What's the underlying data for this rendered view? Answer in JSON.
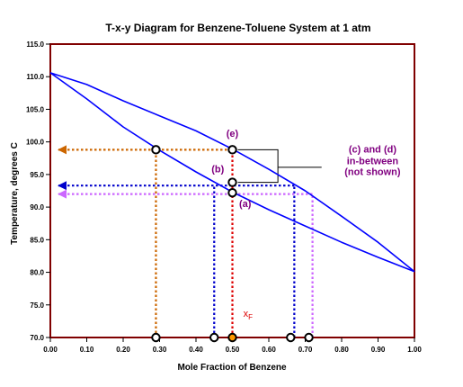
{
  "chart_data": {
    "type": "line",
    "title": "T-x-y Diagram for Benzene-Toluene System at 1 atm",
    "xlabel": "Mole Fraction of Benzene",
    "ylabel": "Temperature, degrees C",
    "xlim": [
      0,
      1
    ],
    "ylim": [
      70,
      115
    ],
    "x_ticks": [
      "0.00",
      "0.10",
      "0.20",
      "0.30",
      "0.40",
      "0.50",
      "0.60",
      "0.70",
      "0.80",
      "0.90",
      "1.00"
    ],
    "y_ticks": [
      "70.0",
      "75.0",
      "80.0",
      "85.0",
      "90.0",
      "95.0",
      "100.0",
      "105.0",
      "110.0",
      "115.0"
    ],
    "grid": false,
    "legend": "none",
    "series": [
      {
        "x": [
          0.0,
          0.1,
          0.2,
          0.3,
          0.4,
          0.5,
          0.6,
          0.7,
          0.8,
          0.9,
          1.0
        ],
        "y": [
          110.6,
          106.6,
          102.3,
          98.7,
          95.4,
          92.3,
          89.6,
          87.1,
          84.6,
          82.3,
          80.1
        ]
      },
      {
        "x": [
          0.0,
          0.1,
          0.2,
          0.3,
          0.4,
          0.5,
          0.6,
          0.7,
          0.8,
          0.9,
          1.0
        ],
        "y": [
          110.6,
          108.8,
          106.3,
          104.0,
          101.7,
          98.9,
          95.8,
          92.5,
          88.6,
          84.6,
          80.1
        ]
      }
    ],
    "guide_lines": [
      {
        "color": "#cc6600",
        "x1": 0.0,
        "y1": 98.8,
        "x2": 0.5,
        "y2": 98.8,
        "arrow": "left"
      },
      {
        "color": "#cc6600",
        "x1": 0.29,
        "y1": 70,
        "x2": 0.29,
        "y2": 98.8,
        "arrow": "none"
      },
      {
        "color": "#0000cc",
        "x1": 0.0,
        "y1": 93.3,
        "x2": 0.67,
        "y2": 93.3,
        "arrow": "left"
      },
      {
        "color": "#0000cc",
        "x1": 0.45,
        "y1": 70,
        "x2": 0.45,
        "y2": 93.3,
        "arrow": "none"
      },
      {
        "color": "#0000cc",
        "x1": 0.67,
        "y1": 70,
        "x2": 0.67,
        "y2": 93.3,
        "arrow": "none"
      },
      {
        "color": "#cc66ff",
        "x1": 0.0,
        "y1": 92.0,
        "x2": 0.72,
        "y2": 92.0,
        "arrow": "left"
      },
      {
        "color": "#cc66ff",
        "x1": 0.72,
        "y1": 70,
        "x2": 0.72,
        "y2": 92.0,
        "arrow": "none"
      },
      {
        "color": "#dd0000",
        "x1": 0.5,
        "y1": 70,
        "x2": 0.5,
        "y2": 98.8,
        "arrow": "none"
      }
    ],
    "points": [
      {
        "x": 0.29,
        "y": 98.8,
        "fill": "#ffffff"
      },
      {
        "x": 0.5,
        "y": 98.8,
        "fill": "#ffffff"
      },
      {
        "x": 0.5,
        "y": 93.8,
        "fill": "#ffffff"
      },
      {
        "x": 0.5,
        "y": 92.2,
        "fill": "#ffffff"
      },
      {
        "x": 0.29,
        "y": 70.0,
        "fill": "#ffffff"
      },
      {
        "x": 0.45,
        "y": 70.0,
        "fill": "#ffffff"
      },
      {
        "x": 0.5,
        "y": 70.0,
        "fill": "#ff9900"
      },
      {
        "x": 0.66,
        "y": 70.0,
        "fill": "#ffffff"
      },
      {
        "x": 0.71,
        "y": 70.0,
        "fill": "#ffffff"
      }
    ],
    "annotations": [
      {
        "text": "(e)",
        "x": 0.5,
        "y": 100.8,
        "color": "#800080"
      },
      {
        "text": "(b)",
        "x": 0.46,
        "y": 95.3,
        "color": "#800080"
      },
      {
        "text": "(a)",
        "x": 0.535,
        "y": 90.0,
        "color": "#800080"
      },
      {
        "text": "(c) and (d)",
        "x": 0.885,
        "y": 98.4,
        "color": "#800080"
      },
      {
        "text": "in-between",
        "x": 0.885,
        "y": 96.6,
        "color": "#800080"
      },
      {
        "text": "(not shown)",
        "x": 0.885,
        "y": 94.9,
        "color": "#800080"
      }
    ],
    "xf_label": {
      "main": "x",
      "sub": "F",
      "color": "#dd0000"
    },
    "curve_color": "#0000ff",
    "frame_color": "#800000"
  }
}
